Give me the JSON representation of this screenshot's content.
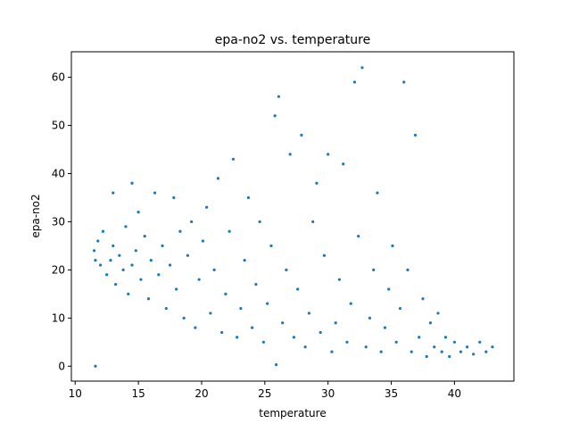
{
  "chart_data": {
    "type": "scatter",
    "title": "epa-no2 vs. temperature",
    "xlabel": "temperature",
    "ylabel": "epa-no2",
    "xlim": [
      9.7,
      44.7
    ],
    "ylim": [
      -3.1,
      65.3
    ],
    "xticks": [
      10,
      15,
      20,
      25,
      30,
      35,
      40
    ],
    "yticks": [
      0,
      10,
      20,
      30,
      40,
      50,
      60
    ],
    "grid": false,
    "marker_color": "#1f77b4",
    "series": [
      {
        "points": [
          [
            11.5,
            24.0
          ],
          [
            11.6,
            22.0
          ],
          [
            11.8,
            26.0
          ],
          [
            12.0,
            21.0
          ],
          [
            12.2,
            28.0
          ],
          [
            12.5,
            19.0
          ],
          [
            12.8,
            22.0
          ],
          [
            13.0,
            25.0
          ],
          [
            13.2,
            17.0
          ],
          [
            13.5,
            23.0
          ],
          [
            13.8,
            20.0
          ],
          [
            14.0,
            29.0
          ],
          [
            14.2,
            15.0
          ],
          [
            14.5,
            21.0
          ],
          [
            14.8,
            24.0
          ],
          [
            15.0,
            32.0
          ],
          [
            15.2,
            18.0
          ],
          [
            15.5,
            27.0
          ],
          [
            15.8,
            14.0
          ],
          [
            16.0,
            22.0
          ],
          [
            16.3,
            36.0
          ],
          [
            16.6,
            19.0
          ],
          [
            16.9,
            25.0
          ],
          [
            17.2,
            12.0
          ],
          [
            17.5,
            21.0
          ],
          [
            17.8,
            35.0
          ],
          [
            18.0,
            16.0
          ],
          [
            18.3,
            28.0
          ],
          [
            18.6,
            10.0
          ],
          [
            18.9,
            23.0
          ],
          [
            19.2,
            30.0
          ],
          [
            19.5,
            8.0
          ],
          [
            19.8,
            18.0
          ],
          [
            20.1,
            26.0
          ],
          [
            20.4,
            33.0
          ],
          [
            20.7,
            11.0
          ],
          [
            21.0,
            20.0
          ],
          [
            21.3,
            39.0
          ],
          [
            21.6,
            7.0
          ],
          [
            21.9,
            15.0
          ],
          [
            22.2,
            28.0
          ],
          [
            22.5,
            43.0
          ],
          [
            22.8,
            6.0
          ],
          [
            23.1,
            12.0
          ],
          [
            23.4,
            22.0
          ],
          [
            23.7,
            35.0
          ],
          [
            24.0,
            8.0
          ],
          [
            24.3,
            17.0
          ],
          [
            24.6,
            30.0
          ],
          [
            24.9,
            5.0
          ],
          [
            25.2,
            13.0
          ],
          [
            25.5,
            25.0
          ],
          [
            25.8,
            52.0
          ],
          [
            26.1,
            56.0
          ],
          [
            26.4,
            9.0
          ],
          [
            26.7,
            20.0
          ],
          [
            27.0,
            44.0
          ],
          [
            27.3,
            6.0
          ],
          [
            27.6,
            16.0
          ],
          [
            27.9,
            48.0
          ],
          [
            28.2,
            4.0
          ],
          [
            28.5,
            11.0
          ],
          [
            28.8,
            30.0
          ],
          [
            29.1,
            38.0
          ],
          [
            29.4,
            7.0
          ],
          [
            29.7,
            23.0
          ],
          [
            30.0,
            44.0
          ],
          [
            30.3,
            3.0
          ],
          [
            30.6,
            9.0
          ],
          [
            30.9,
            18.0
          ],
          [
            31.2,
            42.0
          ],
          [
            31.5,
            5.0
          ],
          [
            31.8,
            13.0
          ],
          [
            32.1,
            59.0
          ],
          [
            32.4,
            27.0
          ],
          [
            32.7,
            62.0
          ],
          [
            33.0,
            4.0
          ],
          [
            33.3,
            10.0
          ],
          [
            33.6,
            20.0
          ],
          [
            33.9,
            36.0
          ],
          [
            34.2,
            3.0
          ],
          [
            34.5,
            8.0
          ],
          [
            34.8,
            16.0
          ],
          [
            35.1,
            25.0
          ],
          [
            35.4,
            5.0
          ],
          [
            35.7,
            12.0
          ],
          [
            36.0,
            59.0
          ],
          [
            36.3,
            20.0
          ],
          [
            36.6,
            3.0
          ],
          [
            36.9,
            48.0
          ],
          [
            37.2,
            6.0
          ],
          [
            37.5,
            14.0
          ],
          [
            37.8,
            2.0
          ],
          [
            38.1,
            9.0
          ],
          [
            38.4,
            4.0
          ],
          [
            38.7,
            11.0
          ],
          [
            39.0,
            3.0
          ],
          [
            39.3,
            6.0
          ],
          [
            39.6,
            2.0
          ],
          [
            40.0,
            5.0
          ],
          [
            40.5,
            3.0
          ],
          [
            41.0,
            4.0
          ],
          [
            41.5,
            2.5
          ],
          [
            42.0,
            5.0
          ],
          [
            42.5,
            3.0
          ],
          [
            43.0,
            4.0
          ],
          [
            11.6,
            0.0
          ],
          [
            25.9,
            0.3
          ],
          [
            13.0,
            36.0
          ],
          [
            14.5,
            38.0
          ]
        ]
      }
    ]
  }
}
